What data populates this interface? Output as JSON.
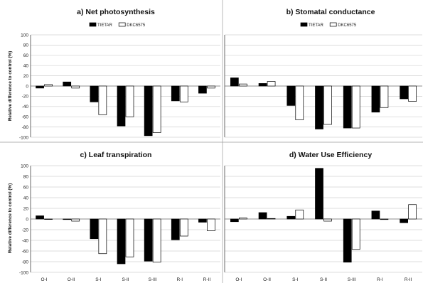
{
  "figure": {
    "colors": {
      "tietar": "#000000",
      "dkc": "#ffffff",
      "bar_edge": "#000000"
    }
  },
  "chart_data": [
    {
      "type": "bar",
      "title": "a) Net photosynthesis",
      "ylabel": "Relative difference to control (%)",
      "xlabel": "",
      "categories": [
        "O-I",
        "O-II",
        "S-I",
        "S-II",
        "S-III",
        "R-I",
        "R-II"
      ],
      "show_category_labels": false,
      "ylim": [
        -100,
        100
      ],
      "yticks": [
        -100,
        -80,
        -60,
        -40,
        -20,
        0,
        20,
        40,
        60,
        80,
        100
      ],
      "grid": true,
      "legend": "top-center",
      "series": [
        {
          "name": "TIETAR",
          "color": "#000000",
          "values": [
            -4,
            8,
            -31,
            -78,
            -97,
            -29,
            -14
          ]
        },
        {
          "name": "DKC6575",
          "color": "#ffffff",
          "values": [
            3,
            -4,
            -56,
            -60,
            -91,
            -31,
            -4
          ]
        }
      ]
    },
    {
      "type": "bar",
      "title": "b) Stomatal conductance",
      "ylabel": "",
      "xlabel": "",
      "categories": [
        "O-I",
        "O-II",
        "S-I",
        "S-II",
        "S-III",
        "R-I",
        "R-II"
      ],
      "show_category_labels": false,
      "ylim": [
        -100,
        100
      ],
      "yticks": [],
      "grid": true,
      "legend": "top-center",
      "series": [
        {
          "name": "TIETAR",
          "color": "#000000",
          "values": [
            16,
            5,
            -38,
            -84,
            -82,
            -51,
            -25
          ]
        },
        {
          "name": "DKC6575",
          "color": "#ffffff",
          "values": [
            4,
            9,
            -66,
            -75,
            -82,
            -42,
            -30
          ]
        }
      ]
    },
    {
      "type": "bar",
      "title": "c) Leaf transpiration",
      "ylabel": "Relative difference to control (%)",
      "xlabel": "",
      "categories": [
        "O-I",
        "O-II",
        "S-I",
        "S-II",
        "S-III",
        "R-I",
        "R-II"
      ],
      "show_category_labels": true,
      "ylim": [
        -100,
        100
      ],
      "yticks": [
        -100,
        -80,
        -60,
        -40,
        -20,
        0,
        20,
        40,
        60,
        80,
        100
      ],
      "grid": true,
      "legend": "none",
      "series": [
        {
          "name": "TIETAR",
          "color": "#000000",
          "values": [
            6,
            -1,
            -37,
            -84,
            -79,
            -39,
            -6
          ]
        },
        {
          "name": "DKC6575",
          "color": "#ffffff",
          "values": [
            0,
            -4,
            -65,
            -71,
            -81,
            -32,
            -22
          ]
        }
      ]
    },
    {
      "type": "bar",
      "title": "d) Water Use Efficiency",
      "ylabel": "",
      "xlabel": "",
      "categories": [
        "O-I",
        "O-II",
        "S-I",
        "S-II",
        "S-III",
        "R-I",
        "R-II"
      ],
      "show_category_labels": true,
      "ylim": [
        -100,
        100
      ],
      "yticks": [],
      "grid": true,
      "legend": "none",
      "series": [
        {
          "name": "TIETAR",
          "color": "#000000",
          "values": [
            -5,
            12,
            5,
            95,
            -81,
            15,
            -7
          ]
        },
        {
          "name": "DKC6575",
          "color": "#ffffff",
          "values": [
            2,
            1,
            17,
            -4,
            -57,
            -1,
            27
          ]
        }
      ]
    }
  ]
}
